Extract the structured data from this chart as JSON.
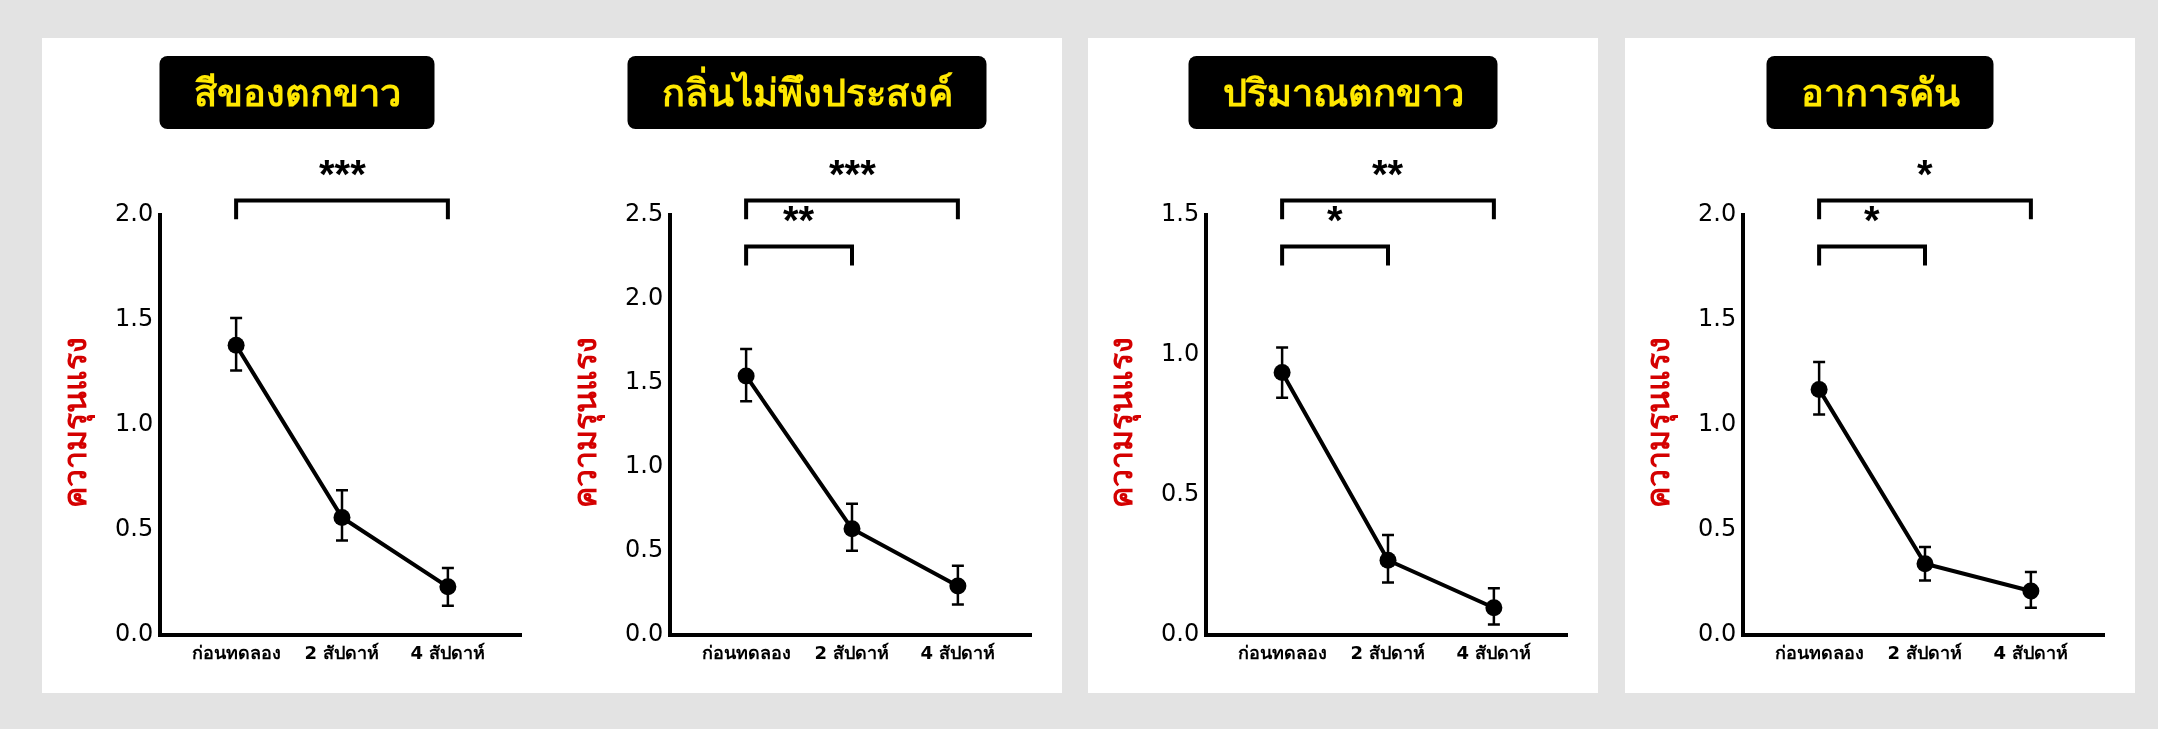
{
  "chart_data": [
    {
      "type": "line",
      "title": "สีของตกขาว",
      "ylabel": "ความรุนแรง",
      "categories": [
        "ก่อนทดลอง",
        "2 สัปดาห์",
        "4 สัปดาห์"
      ],
      "values": [
        1.37,
        0.55,
        0.22
      ],
      "errors": [
        [
          1.25,
          1.5
        ],
        [
          0.44,
          0.68
        ],
        [
          0.13,
          0.31
        ]
      ],
      "color": "#000000",
      "marker": "circle",
      "line_style": "solid",
      "grid": false,
      "ylim": [
        0,
        2
      ],
      "yticks": [
        {
          "value": 0,
          "label": "0.0"
        },
        0.5,
        {
          "value": 1,
          "label": "1.0"
        },
        1.5,
        {
          "value": 2,
          "label": "2.0"
        }
      ],
      "annotations": [
        "***"
      ]
    },
    {
      "type": "line",
      "title": "กลิ่นไม่พึงประสงค์",
      "ylabel": "ความรุนแรง",
      "categories": [
        "ก่อนทดลอง",
        "2 สัปดาห์",
        "4 สัปดาห์"
      ],
      "values": [
        1.53,
        0.62,
        0.28
      ],
      "errors": [
        [
          1.38,
          1.69
        ],
        [
          0.49,
          0.77
        ],
        [
          0.17,
          0.4
        ]
      ],
      "color": "#000000",
      "marker": "circle",
      "line_style": "solid",
      "grid": false,
      "ylim": [
        0,
        2.5
      ],
      "yticks": [
        {
          "value": 0,
          "label": "0.0"
        },
        0.5,
        {
          "value": 1,
          "label": "1.0"
        },
        1.5,
        {
          "value": 2,
          "label": "2.0"
        },
        2.5
      ],
      "annotations": [
        "***",
        "**"
      ]
    },
    {
      "type": "line",
      "title": "ปริมาณตกขาว",
      "ylabel": "ความรุนแรง",
      "categories": [
        "ก่อนทดลอง",
        "2 สัปดาห์",
        "4 สัปดาห์"
      ],
      "values": [
        0.93,
        0.26,
        0.09
      ],
      "errors": [
        [
          0.84,
          1.02
        ],
        [
          0.18,
          0.35
        ],
        [
          0.03,
          0.16
        ]
      ],
      "color": "#000000",
      "marker": "circle",
      "line_style": "solid",
      "grid": false,
      "ylim": [
        0,
        1.5
      ],
      "yticks": [
        {
          "value": 0,
          "label": "0.0"
        },
        0.5,
        {
          "value": 1,
          "label": "1.0"
        },
        1.5
      ],
      "annotations": [
        "**",
        "*"
      ]
    },
    {
      "type": "line",
      "title": "อาการคัน",
      "ylabel": "ความรุนแรง",
      "categories": [
        "ก่อนทดลอง",
        "2 สัปดาห์",
        "4 สัปดาห์"
      ],
      "values": [
        1.16,
        0.33,
        0.2
      ],
      "errors": [
        [
          1.04,
          1.29
        ],
        [
          0.25,
          0.41
        ],
        [
          0.12,
          0.29
        ]
      ],
      "color": "#000000",
      "marker": "circle",
      "line_style": "solid",
      "grid": false,
      "ylim": [
        0,
        2
      ],
      "yticks": [
        {
          "value": 0,
          "label": "0.0"
        },
        0.5,
        {
          "value": 1,
          "label": "1.0"
        },
        1.5,
        {
          "value": 2,
          "label": "2.0"
        }
      ],
      "annotations": [
        "*",
        "*"
      ]
    }
  ]
}
